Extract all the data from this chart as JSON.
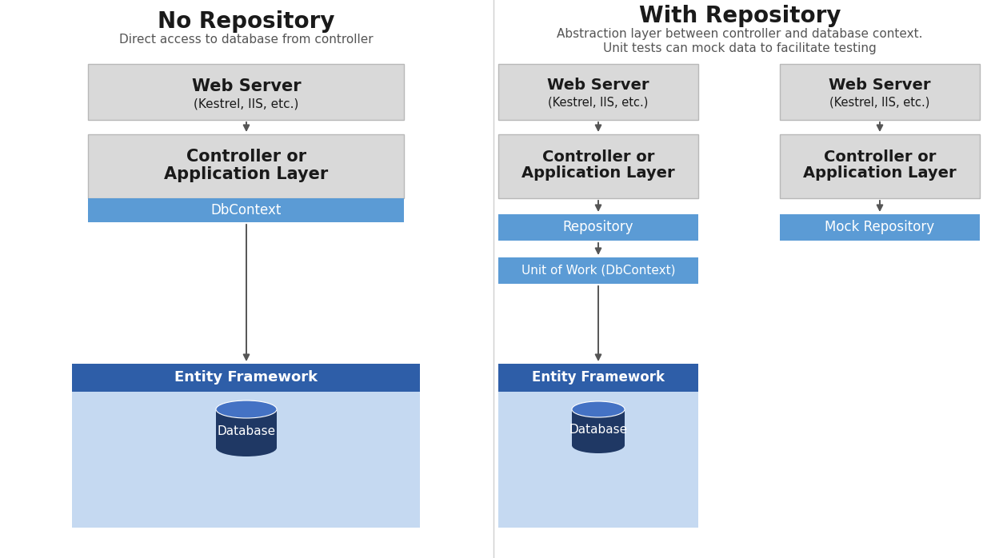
{
  "bg_color": "#ffffff",
  "title_left": "No Repository",
  "subtitle_left": "Direct access to database from controller",
  "title_right": "With Repository",
  "subtitle_right_1": "Abstraction layer between controller and database context.",
  "subtitle_right_2": "Unit tests can mock data to facilitate testing",
  "gray_box_color": "#d9d9d9",
  "gray_box_edge": "#b8b8b8",
  "blue_mid_color": "#5b9bd5",
  "blue_dark_color": "#2e5ea8",
  "ef_bg_color": "#c5d9f1",
  "db_body_color": "#1f3864",
  "db_top_color": "#4472c4",
  "text_dark": "#1a1a1a",
  "text_white": "#ffffff",
  "text_gray": "#555555",
  "divider_color": "#d0d0d0",
  "arrow_color": "#555555"
}
